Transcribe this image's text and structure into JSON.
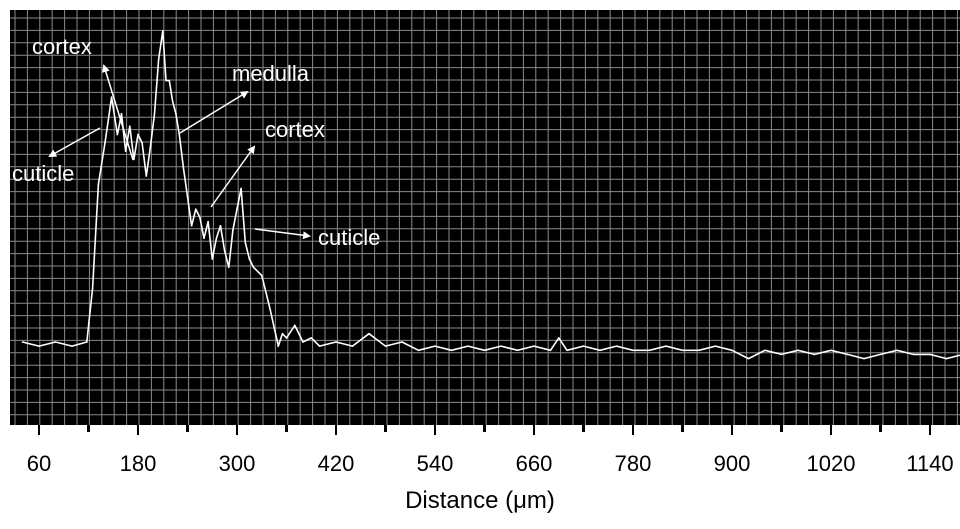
{
  "colors": {
    "plot_background": "#000000",
    "grid": "#8a8a8a",
    "trace": "#ffffff",
    "annotation_text": "#ffffff",
    "axis_text": "#000000"
  },
  "chart_data": {
    "type": "line",
    "title": "",
    "xlabel": "Distance (μm)",
    "ylabel": "",
    "xlim": [
      40,
      1200
    ],
    "ylim": [
      0,
      100
    ],
    "x_ticks": [
      60,
      180,
      300,
      420,
      540,
      660,
      780,
      900,
      1020,
      1140
    ],
    "x_tick_labels": [
      "60",
      "180",
      "300",
      "420",
      "540",
      "660",
      "780",
      "900",
      "1020",
      "1140"
    ],
    "grid": true,
    "legend": "none",
    "series": [
      {
        "x": [
          40,
          60,
          80,
          100,
          118,
          125,
          132,
          140,
          148,
          155,
          160,
          165,
          170,
          175,
          180,
          185,
          190,
          195,
          200,
          205,
          210,
          214,
          218,
          222,
          226,
          230,
          235,
          240,
          245,
          250,
          255,
          260,
          265,
          270,
          275,
          280,
          285,
          290,
          295,
          300,
          305,
          310,
          315,
          320,
          330,
          340,
          350,
          355,
          360,
          370,
          380,
          390,
          400,
          420,
          440,
          460,
          480,
          500,
          520,
          540,
          560,
          580,
          600,
          620,
          640,
          660,
          680,
          690,
          700,
          720,
          740,
          760,
          780,
          800,
          820,
          840,
          860,
          880,
          900,
          920,
          940,
          960,
          980,
          1000,
          1020,
          1040,
          1060,
          1080,
          1100,
          1120,
          1140,
          1160,
          1180,
          1200
        ],
        "y": [
          20,
          19,
          20,
          19,
          20,
          33,
          58,
          68,
          79,
          70,
          75,
          66,
          72,
          64,
          70,
          68,
          60,
          67,
          75,
          88,
          95,
          83,
          83,
          78,
          75,
          70,
          62,
          55,
          48,
          52,
          50,
          45,
          49,
          40,
          45,
          48,
          42,
          38,
          47,
          52,
          57,
          44,
          40,
          38,
          36,
          28,
          19,
          22,
          21,
          24,
          20,
          21,
          19,
          20,
          19,
          22,
          19,
          20,
          18,
          19,
          18,
          19,
          18,
          19,
          18,
          19,
          18,
          21,
          18,
          19,
          18,
          19,
          18,
          18,
          19,
          18,
          18,
          19,
          18,
          16,
          18,
          17,
          18,
          17,
          18,
          17,
          16,
          17,
          18,
          17,
          17,
          16,
          17,
          16
        ]
      }
    ],
    "annotations": [
      {
        "text": "cortex"
      },
      {
        "text": "medulla"
      },
      {
        "text": "cortex"
      },
      {
        "text": "cuticle"
      },
      {
        "text": "cuticle"
      }
    ]
  }
}
